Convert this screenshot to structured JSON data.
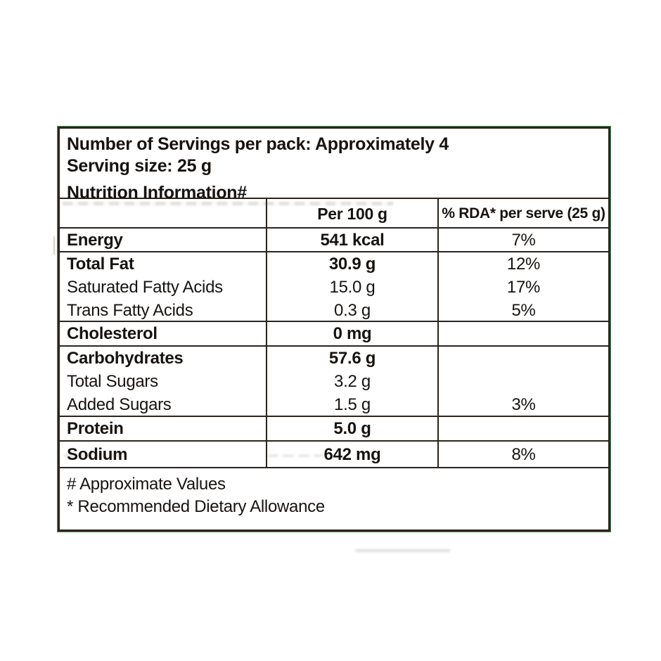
{
  "label": {
    "servings_line": "Number of Servings per pack: Approximately 4",
    "serving_size_line": "Serving size: 25 g",
    "title": "Nutrition Information#",
    "columns": {
      "nutrient": "",
      "per_100g": "Per 100 g",
      "rda_per_serve": "% RDA* per serve (25 g)"
    },
    "rows": [
      {
        "items": [
          {
            "name": "Energy",
            "value": "541 kcal",
            "rda": "7%"
          }
        ]
      },
      {
        "items": [
          {
            "name": "Total Fat",
            "value": "30.9 g",
            "rda": "12%"
          },
          {
            "name": "Saturated Fatty Acids",
            "value": "15.0 g",
            "rda": "17%"
          },
          {
            "name": "Trans Fatty Acids",
            "value": "0.3 g",
            "rda": "5%"
          }
        ]
      },
      {
        "items": [
          {
            "name": "Cholesterol",
            "value": "0 mg",
            "rda": ""
          }
        ]
      },
      {
        "items": [
          {
            "name": "Carbohydrates",
            "value": "57.6 g",
            "rda": ""
          },
          {
            "name": "Total Sugars",
            "value": "3.2 g",
            "rda": ""
          },
          {
            "name": "Added Sugars",
            "value": "1.5 g",
            "rda": "3%"
          }
        ]
      },
      {
        "items": [
          {
            "name": "Protein",
            "value": "5.0 g",
            "rda": ""
          }
        ]
      },
      {
        "items": [
          {
            "name": "Sodium",
            "value": "642 mg",
            "rda": "8%"
          }
        ]
      }
    ],
    "footnotes": {
      "approx": "# Approximate Values",
      "rda": "* Recommended Dietary Allowance"
    }
  },
  "colors": {
    "border": "#2b241e",
    "outer_edge_green": "#4c8a55",
    "text": "#171310",
    "background": "#ffffff"
  }
}
